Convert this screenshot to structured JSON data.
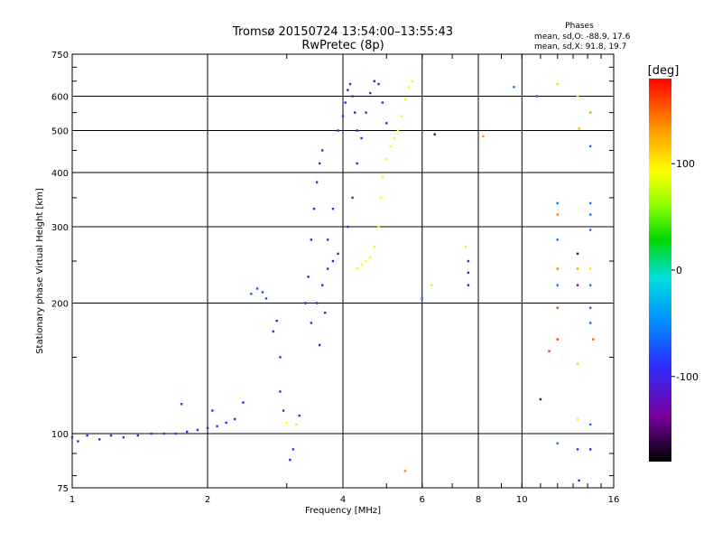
{
  "chart_data": {
    "type": "scatter",
    "title": "Tromsø 20150724 13:54:00–13:55:43",
    "subtitle": "RwPretec (8p)",
    "xlabel": "Frequency [MHz]",
    "ylabel": "Stationary phase Virtual Height [km]",
    "x_scale": "log",
    "y_scale": "log",
    "xlim": [
      1,
      16
    ],
    "ylim": [
      75,
      750
    ],
    "x_ticks": [
      1,
      2,
      4,
      6,
      8,
      10,
      16
    ],
    "y_ticks": [
      75,
      100,
      200,
      300,
      400,
      500,
      600,
      750
    ],
    "grid": true,
    "stats": {
      "heading": "Phases",
      "line_o": "mean, sd,O: -88.9, 17.6",
      "line_x": "mean, sd,X:  91.8, 19.7"
    },
    "colorbar": {
      "unit": "[deg]",
      "min": -180,
      "max": 180,
      "ticks": [
        100,
        0,
        -100
      ]
    },
    "series": [
      {
        "points": [
          {
            "x": 1.0,
            "y": 98,
            "phase": -95
          },
          {
            "x": 1.03,
            "y": 96,
            "phase": -95
          },
          {
            "x": 1.08,
            "y": 99,
            "phase": -92
          },
          {
            "x": 1.15,
            "y": 97,
            "phase": -98
          },
          {
            "x": 1.22,
            "y": 99,
            "phase": -95
          },
          {
            "x": 1.3,
            "y": 98,
            "phase": -92
          },
          {
            "x": 1.4,
            "y": 99,
            "phase": -95
          },
          {
            "x": 1.5,
            "y": 100,
            "phase": -98
          },
          {
            "x": 1.6,
            "y": 100,
            "phase": -95
          },
          {
            "x": 1.7,
            "y": 100,
            "phase": -92
          },
          {
            "x": 1.8,
            "y": 101,
            "phase": -95
          },
          {
            "x": 1.9,
            "y": 102,
            "phase": -98
          },
          {
            "x": 2.0,
            "y": 103,
            "phase": -95
          },
          {
            "x": 2.1,
            "y": 104,
            "phase": -92
          },
          {
            "x": 2.2,
            "y": 106,
            "phase": -95
          },
          {
            "x": 2.3,
            "y": 108,
            "phase": -95
          },
          {
            "x": 1.75,
            "y": 117,
            "phase": -95
          },
          {
            "x": 2.05,
            "y": 113,
            "phase": -95
          },
          {
            "x": 2.4,
            "y": 118,
            "phase": -95
          },
          {
            "x": 2.5,
            "y": 210,
            "phase": -75
          },
          {
            "x": 2.58,
            "y": 216,
            "phase": -75
          },
          {
            "x": 2.65,
            "y": 212,
            "phase": -75
          },
          {
            "x": 2.7,
            "y": 205,
            "phase": -75
          },
          {
            "x": 2.8,
            "y": 172,
            "phase": -95
          },
          {
            "x": 2.85,
            "y": 182,
            "phase": -95
          },
          {
            "x": 2.9,
            "y": 150,
            "phase": -95
          },
          {
            "x": 2.9,
            "y": 125,
            "phase": -95
          },
          {
            "x": 2.95,
            "y": 113,
            "phase": -95
          },
          {
            "x": 3.0,
            "y": 106,
            "phase": 95
          },
          {
            "x": 3.05,
            "y": 87,
            "phase": -95
          },
          {
            "x": 3.1,
            "y": 92,
            "phase": -95
          },
          {
            "x": 3.15,
            "y": 105,
            "phase": 100
          },
          {
            "x": 3.2,
            "y": 110,
            "phase": -95
          },
          {
            "x": 3.3,
            "y": 200,
            "phase": -110
          },
          {
            "x": 3.35,
            "y": 230,
            "phase": -110
          },
          {
            "x": 3.4,
            "y": 280,
            "phase": -110
          },
          {
            "x": 3.45,
            "y": 330,
            "phase": -110
          },
          {
            "x": 3.5,
            "y": 380,
            "phase": -110
          },
          {
            "x": 3.55,
            "y": 420,
            "phase": -110
          },
          {
            "x": 3.6,
            "y": 450,
            "phase": -110
          },
          {
            "x": 3.4,
            "y": 180,
            "phase": -110
          },
          {
            "x": 3.5,
            "y": 200,
            "phase": -110
          },
          {
            "x": 3.6,
            "y": 220,
            "phase": -110
          },
          {
            "x": 3.7,
            "y": 240,
            "phase": -110
          },
          {
            "x": 3.8,
            "y": 250,
            "phase": -110
          },
          {
            "x": 3.9,
            "y": 260,
            "phase": -110
          },
          {
            "x": 3.55,
            "y": 160,
            "phase": -110
          },
          {
            "x": 3.65,
            "y": 190,
            "phase": -110
          },
          {
            "x": 3.7,
            "y": 280,
            "phase": -110
          },
          {
            "x": 3.8,
            "y": 330,
            "phase": -110
          },
          {
            "x": 3.9,
            "y": 500,
            "phase": -110
          },
          {
            "x": 4.0,
            "y": 540,
            "phase": -110
          },
          {
            "x": 4.05,
            "y": 580,
            "phase": -110
          },
          {
            "x": 4.1,
            "y": 620,
            "phase": -110
          },
          {
            "x": 4.15,
            "y": 640,
            "phase": -110
          },
          {
            "x": 4.2,
            "y": 600,
            "phase": -110
          },
          {
            "x": 4.25,
            "y": 550,
            "phase": -110
          },
          {
            "x": 4.3,
            "y": 500,
            "phase": -110
          },
          {
            "x": 4.1,
            "y": 300,
            "phase": -110
          },
          {
            "x": 4.2,
            "y": 350,
            "phase": -110
          },
          {
            "x": 4.3,
            "y": 420,
            "phase": -110
          },
          {
            "x": 4.4,
            "y": 480,
            "phase": -110
          },
          {
            "x": 4.5,
            "y": 550,
            "phase": -110
          },
          {
            "x": 4.6,
            "y": 610,
            "phase": -110
          },
          {
            "x": 4.7,
            "y": 650,
            "phase": -110
          },
          {
            "x": 4.8,
            "y": 640,
            "phase": -110
          },
          {
            "x": 4.9,
            "y": 580,
            "phase": -110
          },
          {
            "x": 5.0,
            "y": 520,
            "phase": -110
          },
          {
            "x": 4.3,
            "y": 240,
            "phase": 95
          },
          {
            "x": 4.4,
            "y": 245,
            "phase": 95
          },
          {
            "x": 4.5,
            "y": 250,
            "phase": 95
          },
          {
            "x": 4.6,
            "y": 255,
            "phase": 95
          },
          {
            "x": 4.7,
            "y": 270,
            "phase": 95
          },
          {
            "x": 4.8,
            "y": 300,
            "phase": 95
          },
          {
            "x": 4.85,
            "y": 350,
            "phase": 95
          },
          {
            "x": 4.9,
            "y": 390,
            "phase": 95
          },
          {
            "x": 5.0,
            "y": 430,
            "phase": 95
          },
          {
            "x": 5.1,
            "y": 460,
            "phase": 95
          },
          {
            "x": 5.2,
            "y": 480,
            "phase": 95
          },
          {
            "x": 5.3,
            "y": 500,
            "phase": 95
          },
          {
            "x": 5.4,
            "y": 540,
            "phase": 95
          },
          {
            "x": 5.5,
            "y": 590,
            "phase": 95
          },
          {
            "x": 5.6,
            "y": 630,
            "phase": 95
          },
          {
            "x": 5.7,
            "y": 650,
            "phase": 95
          },
          {
            "x": 5.5,
            "y": 82,
            "phase": 140
          },
          {
            "x": 6.0,
            "y": 205,
            "phase": -60
          },
          {
            "x": 6.3,
            "y": 220,
            "phase": 100
          },
          {
            "x": 6.4,
            "y": 490,
            "phase": -150
          },
          {
            "x": 7.5,
            "y": 270,
            "phase": 100
          },
          {
            "x": 7.6,
            "y": 250,
            "phase": -110
          },
          {
            "x": 7.6,
            "y": 235,
            "phase": -110
          },
          {
            "x": 7.6,
            "y": 220,
            "phase": -110
          },
          {
            "x": 8.2,
            "y": 485,
            "phase": 130
          },
          {
            "x": 9.6,
            "y": 630,
            "phase": -60
          },
          {
            "x": 10.8,
            "y": 600,
            "phase": -60
          },
          {
            "x": 11.0,
            "y": 120,
            "phase": -150
          },
          {
            "x": 11.5,
            "y": 155,
            "phase": 160
          },
          {
            "x": 12.0,
            "y": 640,
            "phase": 110
          },
          {
            "x": 12.0,
            "y": 340,
            "phase": -60
          },
          {
            "x": 12.0,
            "y": 320,
            "phase": 140
          },
          {
            "x": 12.0,
            "y": 280,
            "phase": -60
          },
          {
            "x": 12.0,
            "y": 240,
            "phase": 140
          },
          {
            "x": 12.0,
            "y": 220,
            "phase": -60
          },
          {
            "x": 12.0,
            "y": 195,
            "phase": 160
          },
          {
            "x": 12.0,
            "y": 165,
            "phase": 160
          },
          {
            "x": 12.0,
            "y": 95,
            "phase": -60
          },
          {
            "x": 13.3,
            "y": 600,
            "phase": 100
          },
          {
            "x": 13.4,
            "y": 505,
            "phase": 120
          },
          {
            "x": 13.3,
            "y": 260,
            "phase": -150
          },
          {
            "x": 13.3,
            "y": 240,
            "phase": 130
          },
          {
            "x": 13.3,
            "y": 220,
            "phase": -110
          },
          {
            "x": 13.3,
            "y": 145,
            "phase": 110
          },
          {
            "x": 13.3,
            "y": 108,
            "phase": 100
          },
          {
            "x": 13.3,
            "y": 92,
            "phase": -110
          },
          {
            "x": 13.4,
            "y": 78,
            "phase": -110
          },
          {
            "x": 14.2,
            "y": 550,
            "phase": 130
          },
          {
            "x": 14.2,
            "y": 460,
            "phase": -60
          },
          {
            "x": 14.2,
            "y": 340,
            "phase": -60
          },
          {
            "x": 14.2,
            "y": 320,
            "phase": -60
          },
          {
            "x": 14.2,
            "y": 295,
            "phase": -60
          },
          {
            "x": 14.2,
            "y": 240,
            "phase": 100
          },
          {
            "x": 14.2,
            "y": 220,
            "phase": -60
          },
          {
            "x": 14.2,
            "y": 195,
            "phase": -60
          },
          {
            "x": 14.2,
            "y": 180,
            "phase": -60
          },
          {
            "x": 14.4,
            "y": 165,
            "phase": 150
          },
          {
            "x": 14.2,
            "y": 105,
            "phase": -60
          },
          {
            "x": 14.2,
            "y": 92,
            "phase": -110
          }
        ]
      }
    ]
  }
}
